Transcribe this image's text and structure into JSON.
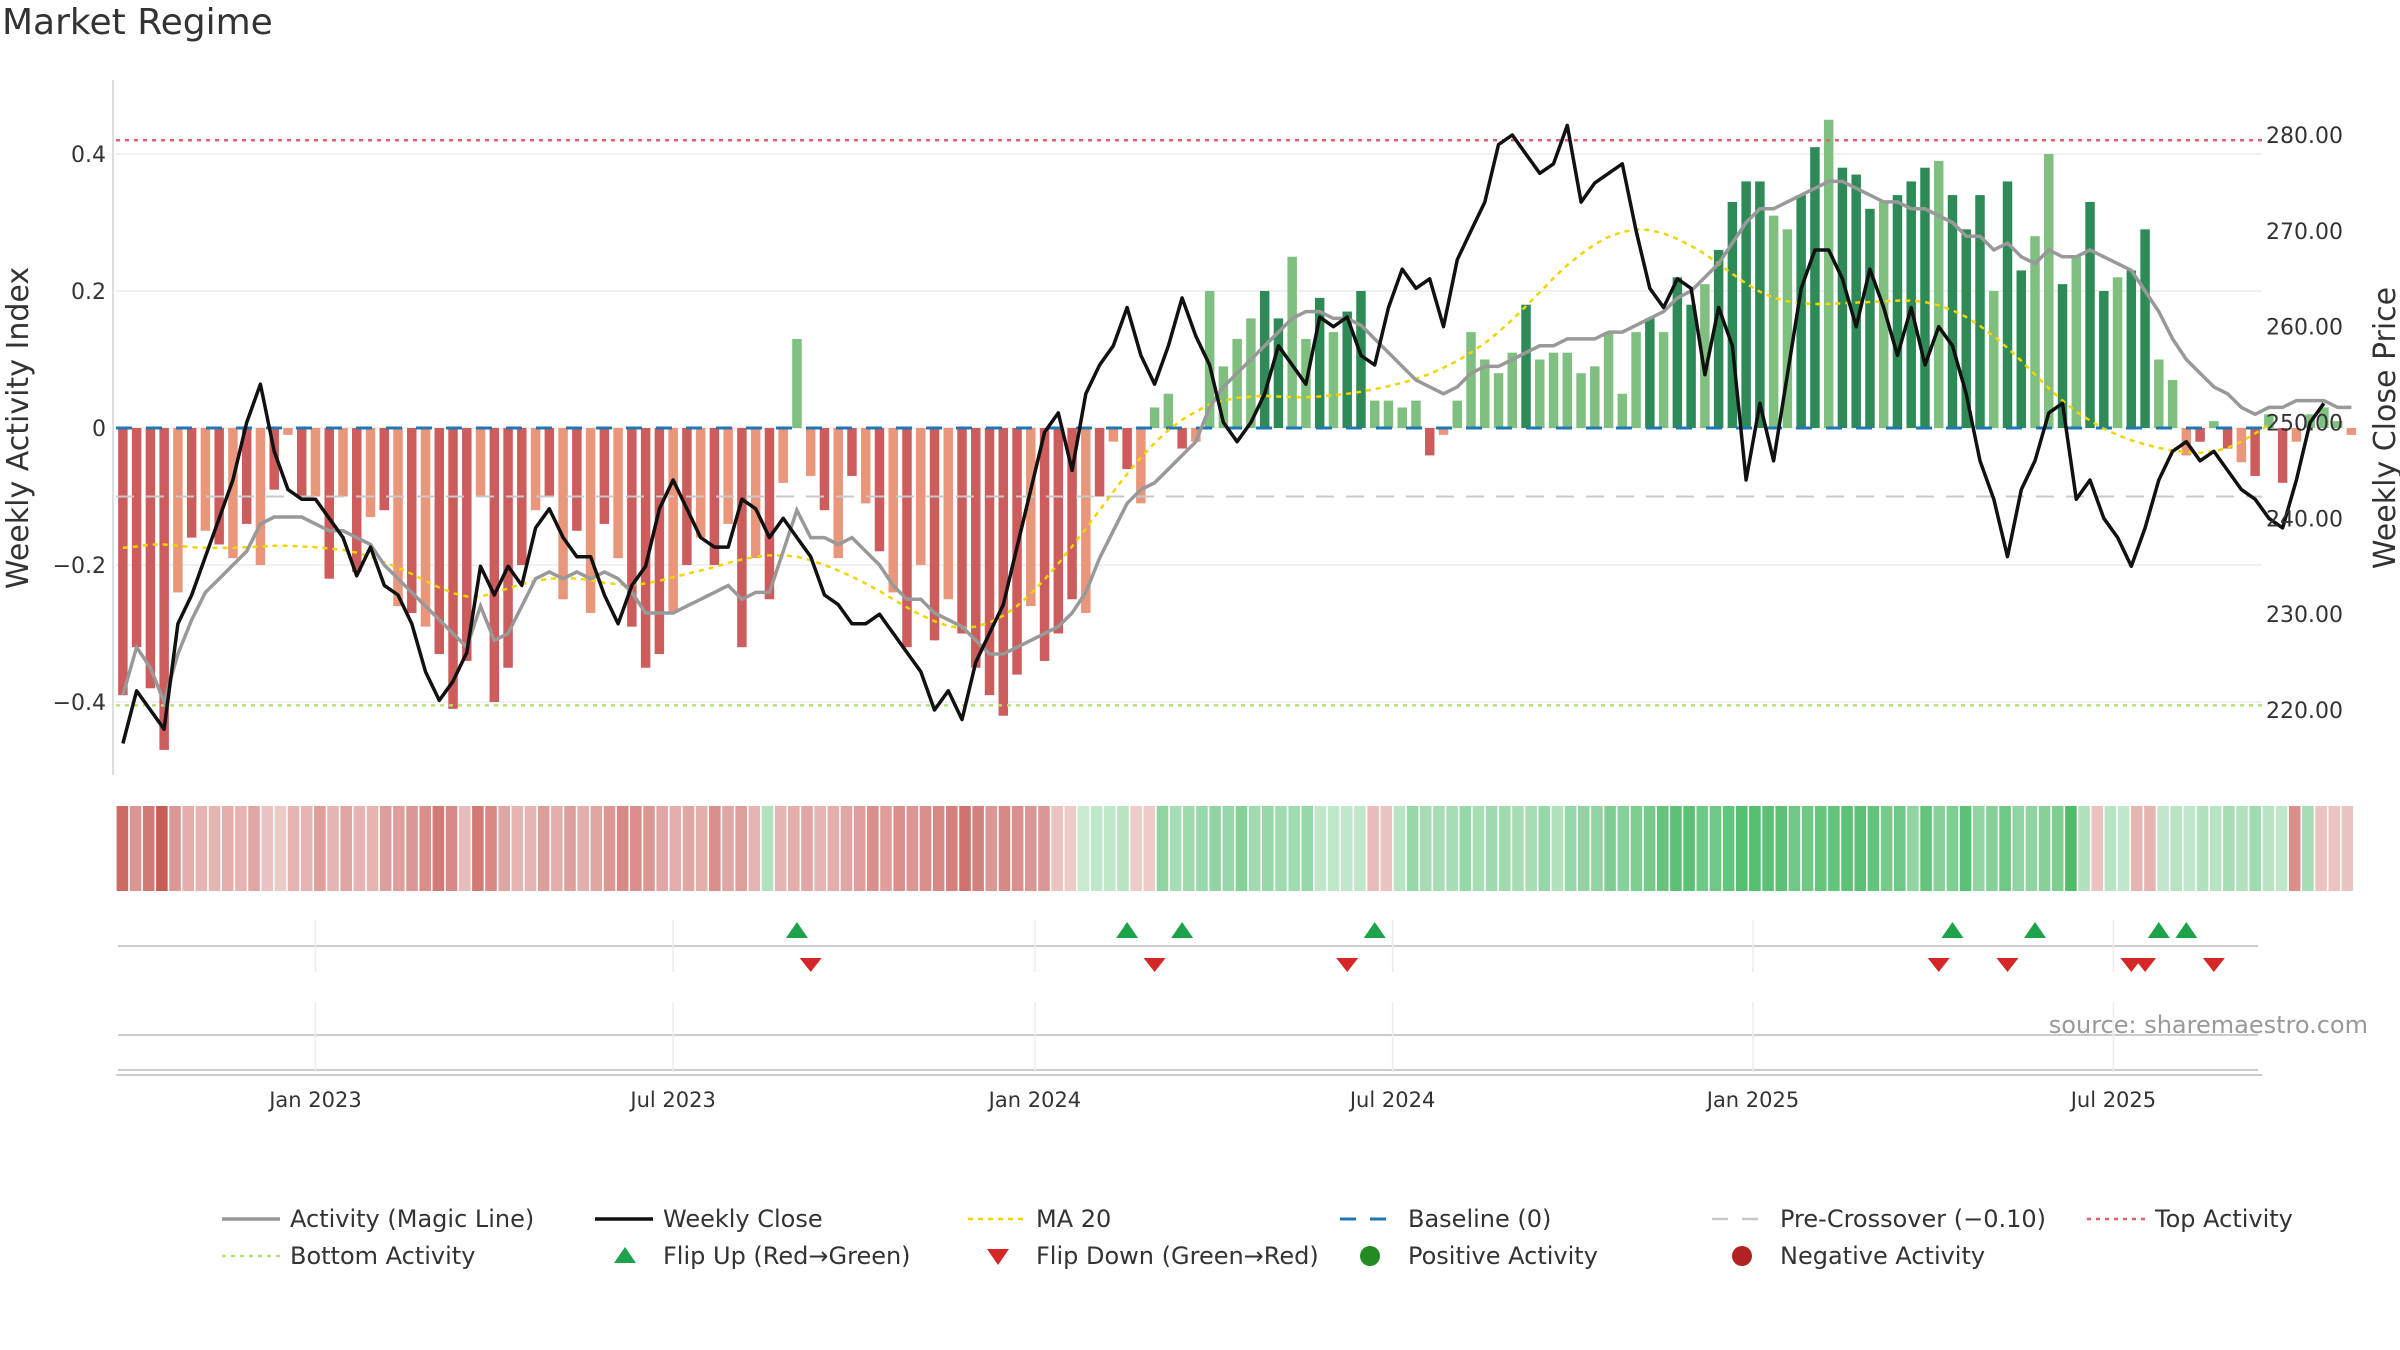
{
  "title": "Market Regime",
  "source": "source: sharemaestro.com",
  "colors": {
    "pos_dark": "#2e8b57",
    "pos_light": "#7fbf7f",
    "neg_dark": "#cd5c5c",
    "neg_light": "#e9967a",
    "magic_line": "#999999",
    "close_line": "#111111",
    "ma20": "#f2d400",
    "baseline": "#1f77b4",
    "pre_crossover": "#c8c8c8",
    "top": "#e06070",
    "bottom": "#b5e07a",
    "flip_up": "#1fa34a",
    "flip_down": "#d62728",
    "pos_marker": "#228b22",
    "neg_marker": "#b22222"
  },
  "chart_data": {
    "type": "bar",
    "title": "Market Regime",
    "ylabel_left": "Weekly Activity Index",
    "ylabel_right": "Weekly Close Price",
    "y_left_ticks": [
      "0.4",
      "0.2",
      "0",
      "−0.2",
      "−0.4"
    ],
    "y_left_range": [
      -0.5,
      0.5
    ],
    "y_right_ticks": [
      "280.00",
      "270.00",
      "260.00",
      "250.00",
      "240.00",
      "230.00",
      "220.00"
    ],
    "y_right_range": [
      213,
      283
    ],
    "x_ticks": [
      "Jan 2023",
      "Jul 2023",
      "Jan 2024",
      "Jul 2024",
      "Jan 2025",
      "Jul 2025"
    ],
    "x_range_weeks": [
      0,
      156
    ],
    "x_tick_weeks": [
      14.5,
      40.5,
      66.8,
      92.8,
      119.0,
      145.2
    ],
    "reference_lines": {
      "top": 0.42,
      "bottom": -0.405,
      "baseline": 0,
      "pre_crossover": -0.1
    },
    "activity": [
      -0.39,
      -0.32,
      -0.38,
      -0.47,
      -0.24,
      -0.16,
      -0.15,
      -0.17,
      -0.19,
      -0.14,
      -0.2,
      -0.09,
      -0.01,
      -0.1,
      -0.1,
      -0.22,
      -0.1,
      -0.21,
      -0.13,
      -0.12,
      -0.26,
      -0.27,
      -0.29,
      -0.33,
      -0.41,
      -0.34,
      -0.1,
      -0.4,
      -0.35,
      -0.2,
      -0.12,
      -0.1,
      -0.25,
      -0.15,
      -0.27,
      -0.14,
      -0.19,
      -0.29,
      -0.35,
      -0.33,
      -0.27,
      -0.2,
      -0.16,
      -0.2,
      -0.14,
      -0.32,
      -0.19,
      -0.25,
      -0.08,
      0.13,
      -0.07,
      -0.12,
      -0.19,
      -0.07,
      -0.11,
      -0.18,
      -0.24,
      -0.32,
      -0.2,
      -0.31,
      -0.25,
      -0.3,
      -0.35,
      -0.39,
      -0.42,
      -0.36,
      -0.26,
      -0.34,
      -0.3,
      -0.25,
      -0.27,
      -0.1,
      -0.02,
      -0.06,
      -0.11,
      0.03,
      0.05,
      -0.03,
      -0.02,
      0.2,
      0.09,
      0.13,
      0.16,
      0.2,
      0.16,
      0.25,
      0.13,
      0.19,
      0.14,
      0.17,
      0.2,
      0.04,
      0.04,
      0.03,
      0.04,
      -0.04,
      -0.01,
      0.04,
      0.14,
      0.1,
      0.08,
      0.11,
      0.18,
      0.1,
      0.11,
      0.11,
      0.08,
      0.09,
      0.14,
      0.05,
      0.14,
      0.16,
      0.14,
      0.22,
      0.18,
      0.21,
      0.26,
      0.33,
      0.36,
      0.36,
      0.31,
      0.29,
      0.34,
      0.41,
      0.45,
      0.38,
      0.37,
      0.32,
      0.33,
      0.34,
      0.36,
      0.38,
      0.39,
      0.34,
      0.29,
      0.34,
      0.2,
      0.36,
      0.23,
      0.28,
      0.4,
      0.21,
      0.25,
      0.33,
      0.2,
      0.22,
      0.23,
      0.29,
      0.1,
      0.07,
      -0.04,
      -0.02,
      0.01,
      -0.03,
      -0.05,
      -0.07,
      0.02,
      -0.08,
      -0.02,
      0.02,
      0.03,
      0.01,
      -0.01
    ],
    "weekly_close": [
      216.5,
      222,
      220,
      218,
      229,
      232,
      236,
      240,
      244,
      250,
      254,
      247,
      243,
      242,
      242,
      240,
      238,
      234,
      237,
      233,
      232,
      229,
      224,
      221,
      223,
      226,
      235,
      232,
      235,
      233,
      239,
      241,
      238,
      236,
      236,
      232,
      229,
      233,
      235,
      241,
      244,
      241,
      238,
      237,
      237,
      242,
      241,
      238,
      240,
      238,
      236,
      232,
      231,
      229,
      229,
      230,
      228,
      226,
      224,
      220,
      222,
      219,
      225,
      228,
      231,
      237,
      243,
      249,
      251,
      245,
      253,
      256,
      258,
      262,
      257,
      254,
      258,
      263,
      259,
      256,
      250,
      248,
      250,
      253,
      258,
      256,
      254,
      261,
      260,
      261,
      257,
      256,
      262,
      266,
      264,
      265,
      260,
      267,
      270,
      273,
      279,
      280,
      278,
      276,
      277,
      281,
      273,
      275,
      276,
      277,
      270,
      264,
      262,
      265,
      264,
      255,
      262,
      258,
      244,
      252,
      246,
      255,
      264,
      268,
      268,
      265,
      260,
      266,
      262,
      257,
      262,
      256,
      260,
      258,
      253,
      246,
      242,
      236,
      243,
      246,
      251,
      252,
      242,
      244,
      240,
      238,
      235,
      239,
      244,
      247,
      248,
      246,
      247,
      245,
      243,
      242,
      240,
      239,
      244,
      250,
      252
    ],
    "magic_line": [
      -0.39,
      -0.32,
      -0.35,
      -0.4,
      -0.33,
      -0.28,
      -0.24,
      -0.22,
      -0.2,
      -0.18,
      -0.14,
      -0.13,
      -0.13,
      -0.13,
      -0.14,
      -0.15,
      -0.15,
      -0.16,
      -0.17,
      -0.2,
      -0.22,
      -0.24,
      -0.26,
      -0.28,
      -0.3,
      -0.32,
      -0.26,
      -0.31,
      -0.3,
      -0.26,
      -0.22,
      -0.21,
      -0.22,
      -0.21,
      -0.22,
      -0.21,
      -0.22,
      -0.24,
      -0.27,
      -0.27,
      -0.27,
      -0.26,
      -0.25,
      -0.24,
      -0.23,
      -0.25,
      -0.24,
      -0.24,
      -0.18,
      -0.12,
      -0.16,
      -0.16,
      -0.17,
      -0.16,
      -0.18,
      -0.2,
      -0.23,
      -0.25,
      -0.25,
      -0.27,
      -0.28,
      -0.29,
      -0.31,
      -0.33,
      -0.33,
      -0.32,
      -0.31,
      -0.3,
      -0.29,
      -0.27,
      -0.24,
      -0.19,
      -0.15,
      -0.11,
      -0.09,
      -0.08,
      -0.06,
      -0.04,
      -0.02,
      0.03,
      0.06,
      0.08,
      0.1,
      0.12,
      0.14,
      0.16,
      0.17,
      0.17,
      0.16,
      0.16,
      0.15,
      0.13,
      0.11,
      0.09,
      0.07,
      0.06,
      0.05,
      0.06,
      0.08,
      0.09,
      0.09,
      0.1,
      0.11,
      0.12,
      0.12,
      0.13,
      0.13,
      0.13,
      0.14,
      0.14,
      0.15,
      0.16,
      0.17,
      0.19,
      0.2,
      0.22,
      0.24,
      0.27,
      0.3,
      0.32,
      0.32,
      0.33,
      0.34,
      0.35,
      0.36,
      0.36,
      0.35,
      0.34,
      0.33,
      0.33,
      0.32,
      0.32,
      0.31,
      0.3,
      0.28,
      0.28,
      0.26,
      0.27,
      0.25,
      0.24,
      0.26,
      0.25,
      0.25,
      0.26,
      0.25,
      0.24,
      0.23,
      0.2,
      0.17,
      0.13,
      0.1,
      0.08,
      0.06,
      0.05,
      0.03,
      0.02,
      0.03,
      0.03,
      0.04,
      0.04,
      0.04,
      0.03,
      0.03
    ],
    "ma20": [
      -0.175,
      -0.173,
      -0.17,
      -0.17,
      -0.172,
      -0.174,
      -0.175,
      -0.175,
      -0.175,
      -0.174,
      -0.173,
      -0.172,
      -0.172,
      -0.173,
      -0.174,
      -0.176,
      -0.178,
      -0.182,
      -0.188,
      -0.196,
      -0.204,
      -0.213,
      -0.223,
      -0.233,
      -0.241,
      -0.246,
      -0.246,
      -0.241,
      -0.234,
      -0.228,
      -0.223,
      -0.22,
      -0.219,
      -0.22,
      -0.222,
      -0.226,
      -0.228,
      -0.229,
      -0.227,
      -0.223,
      -0.218,
      -0.213,
      -0.208,
      -0.203,
      -0.197,
      -0.192,
      -0.188,
      -0.186,
      -0.186,
      -0.188,
      -0.193,
      -0.2,
      -0.208,
      -0.217,
      -0.227,
      -0.238,
      -0.25,
      -0.262,
      -0.273,
      -0.282,
      -0.289,
      -0.292,
      -0.29,
      -0.284,
      -0.274,
      -0.26,
      -0.242,
      -0.221,
      -0.198,
      -0.173,
      -0.147,
      -0.12,
      -0.093,
      -0.067,
      -0.043,
      -0.022,
      -0.003,
      0.012,
      0.024,
      0.034,
      0.04,
      0.044,
      0.046,
      0.047,
      0.046,
      0.045,
      0.045,
      0.046,
      0.048,
      0.05,
      0.053,
      0.057,
      0.061,
      0.066,
      0.072,
      0.079,
      0.088,
      0.098,
      0.11,
      0.124,
      0.14,
      0.158,
      0.178,
      0.198,
      0.219,
      0.238,
      0.254,
      0.268,
      0.279,
      0.286,
      0.29,
      0.289,
      0.284,
      0.276,
      0.266,
      0.254,
      0.24,
      0.225,
      0.211,
      0.199,
      0.19,
      0.185,
      0.182,
      0.181,
      0.181,
      0.182,
      0.183,
      0.184,
      0.185,
      0.186,
      0.186,
      0.184,
      0.179,
      0.172,
      0.162,
      0.149,
      0.134,
      0.117,
      0.098,
      0.078,
      0.058,
      0.04,
      0.024,
      0.011,
      -0.001,
      -0.01,
      -0.018,
      -0.024,
      -0.029,
      -0.033,
      -0.035,
      -0.036,
      -0.034,
      -0.029,
      -0.02,
      -0.008,
      0.005
    ],
    "regime_strip": [
      -0.8,
      -0.5,
      -0.7,
      -0.9,
      -0.5,
      -0.35,
      -0.3,
      -0.3,
      -0.35,
      -0.3,
      -0.4,
      -0.2,
      -0.15,
      -0.3,
      -0.3,
      -0.45,
      -0.3,
      -0.4,
      -0.3,
      -0.3,
      -0.45,
      -0.45,
      -0.5,
      -0.55,
      -0.7,
      -0.6,
      -0.25,
      -0.7,
      -0.6,
      -0.4,
      -0.3,
      -0.3,
      -0.45,
      -0.35,
      -0.45,
      -0.35,
      -0.4,
      -0.5,
      -0.6,
      -0.55,
      -0.5,
      -0.4,
      -0.35,
      -0.4,
      -0.35,
      -0.55,
      -0.4,
      -0.45,
      -0.3,
      0.3,
      -0.3,
      -0.35,
      -0.4,
      -0.3,
      -0.35,
      -0.4,
      -0.45,
      -0.55,
      -0.45,
      -0.55,
      -0.5,
      -0.55,
      -0.6,
      -0.65,
      -0.75,
      -0.65,
      -0.5,
      -0.6,
      -0.55,
      -0.5,
      -0.5,
      -0.2,
      -0.15,
      0.15,
      0.2,
      0.2,
      0.25,
      -0.15,
      -0.15,
      0.5,
      0.35,
      0.4,
      0.45,
      0.5,
      0.45,
      0.55,
      0.4,
      0.45,
      0.4,
      0.4,
      0.45,
      0.2,
      0.2,
      0.2,
      0.2,
      -0.25,
      -0.2,
      0.25,
      0.45,
      0.35,
      0.35,
      0.35,
      0.45,
      0.35,
      0.4,
      0.4,
      0.35,
      0.35,
      0.45,
      0.3,
      0.45,
      0.5,
      0.5,
      0.6,
      0.55,
      0.6,
      0.65,
      0.75,
      0.8,
      0.8,
      0.7,
      0.7,
      0.75,
      0.85,
      0.85,
      0.8,
      0.8,
      0.7,
      0.7,
      0.75,
      0.75,
      0.8,
      0.8,
      0.75,
      0.65,
      0.7,
      0.5,
      0.75,
      0.55,
      0.6,
      0.8,
      0.5,
      0.55,
      0.7,
      0.5,
      0.5,
      0.55,
      0.6,
      0.9,
      0.3,
      -0.2,
      0.25,
      0.2,
      -0.3,
      -0.3,
      0.2,
      0.25,
      0.2,
      0.3,
      0.25,
      0.35,
      0.3,
      0.4,
      0.25,
      0.2,
      -0.55,
      0.35,
      -0.2,
      -0.2,
      -0.2
    ],
    "flips_up": [
      49.5,
      73.5,
      77.5,
      91.5,
      133.5,
      139.5,
      148.5,
      150.5
    ],
    "flips_down": [
      50.5,
      75.5,
      89.5,
      132.5,
      137.5,
      146.5,
      147.5,
      152.5
    ]
  },
  "legend": [
    {
      "label": "Activity (Magic Line)",
      "style": "solid-gray"
    },
    {
      "label": "Weekly Close",
      "style": "solid-black"
    },
    {
      "label": "MA 20",
      "style": "dotted-yellow"
    },
    {
      "label": "Baseline (0)",
      "style": "dashed-blue"
    },
    {
      "label": "Pre-Crossover (−0.10)",
      "style": "dashed-gray"
    },
    {
      "label": "Top Activity",
      "style": "dotted-red"
    },
    {
      "label": "Bottom Activity",
      "style": "dotted-green"
    },
    {
      "label": "Flip Up (Red→Green)",
      "style": "triangle-up"
    },
    {
      "label": "Flip Down (Green→Red)",
      "style": "triangle-down"
    },
    {
      "label": "Positive Activity",
      "style": "dot-green"
    },
    {
      "label": "Negative Activity",
      "style": "dot-red"
    }
  ]
}
